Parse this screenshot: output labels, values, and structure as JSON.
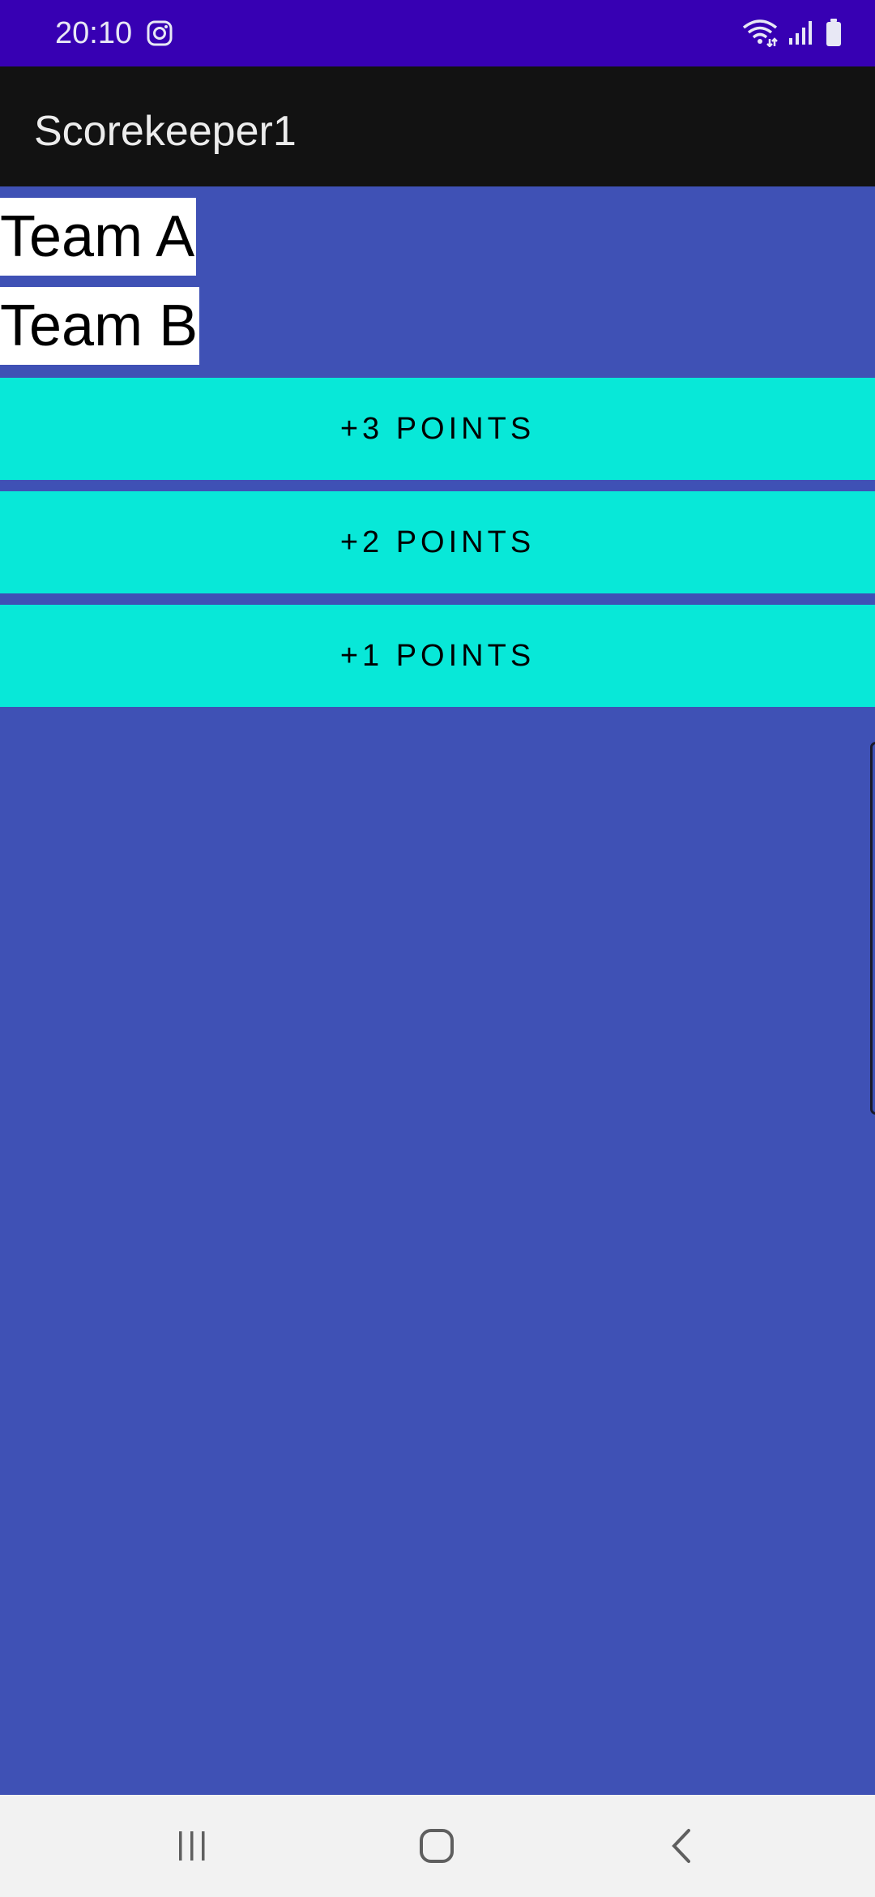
{
  "status_bar": {
    "time": "20:10",
    "left_icon": "instagram-icon",
    "right_icons": [
      "wifi-icon",
      "signal-icon",
      "battery-icon"
    ]
  },
  "app_bar": {
    "title": "Scorekeeper1"
  },
  "teams": [
    {
      "label": "Team A"
    },
    {
      "label": "Team B"
    }
  ],
  "buttons": [
    {
      "label": "+3 POINTS"
    },
    {
      "label": "+2 POINTS"
    },
    {
      "label": "+1 POINTS"
    }
  ],
  "nav_bar": {
    "icons": [
      "recent-apps-icon",
      "home-icon",
      "back-icon"
    ]
  },
  "colors": {
    "status_bar": "#3700b3",
    "app_bar": "#121212",
    "background": "#3f51b5",
    "button": "#08e8d8",
    "nav_bar": "#f2f2f2"
  }
}
